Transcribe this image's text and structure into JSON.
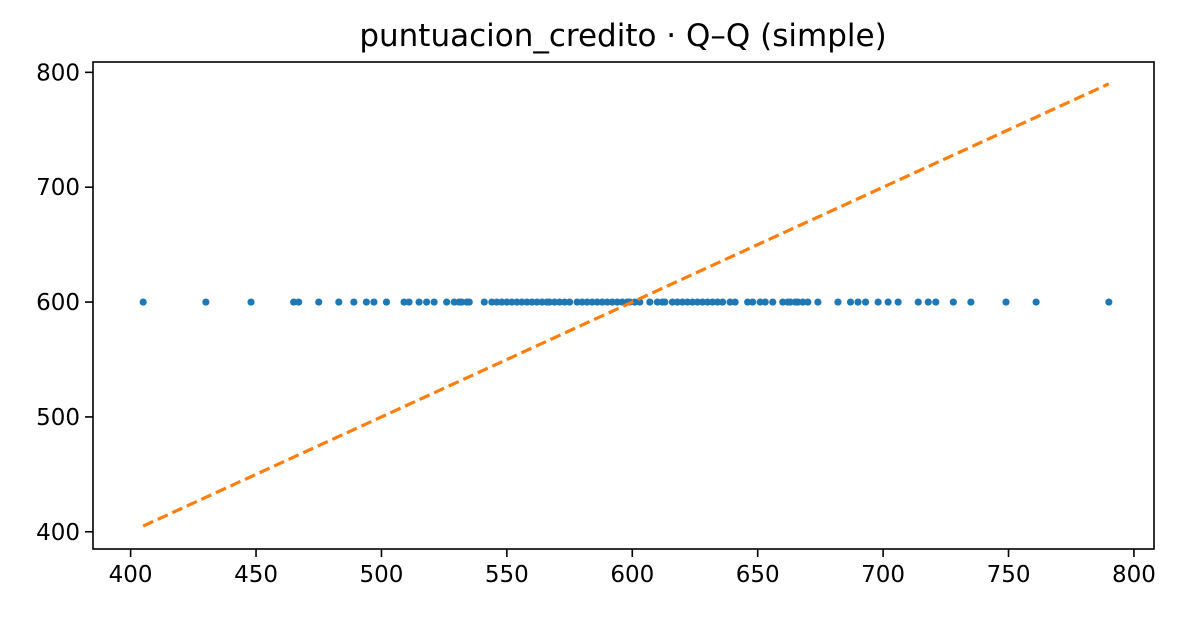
{
  "chart_data": {
    "type": "scatter",
    "title": "puntuacion_credito · Q–Q (simple)",
    "xlabel": "",
    "ylabel": "",
    "xlim": [
      385,
      808
    ],
    "ylim": [
      385,
      809
    ],
    "xticks": [
      400,
      450,
      500,
      550,
      600,
      650,
      700,
      750,
      800
    ],
    "xtick_labels": [
      "400",
      "450",
      "500",
      "550",
      "600",
      "650",
      "700",
      "750",
      "800"
    ],
    "yticks": [
      400,
      500,
      600,
      700,
      800
    ],
    "ytick_labels": [
      "400",
      "500",
      "600",
      "700",
      "800"
    ],
    "grid": false,
    "series": [
      {
        "kind": "points",
        "color": "#1f77b4",
        "x": [
          405,
          430,
          448,
          465,
          467,
          475,
          483,
          489,
          494,
          497,
          502,
          509,
          511,
          515,
          518,
          521,
          526,
          529,
          531,
          532,
          534,
          535,
          541,
          544,
          546,
          548,
          550,
          552,
          554,
          556,
          558,
          560,
          562,
          564,
          566,
          567,
          569,
          571,
          573,
          575,
          578,
          580,
          582,
          584,
          586,
          588,
          590,
          592,
          594,
          596,
          598,
          599,
          601,
          603,
          607,
          610,
          612,
          613,
          616,
          618,
          620,
          622,
          624,
          626,
          628,
          630,
          632,
          634,
          636,
          639,
          641,
          646,
          648,
          651,
          653,
          656,
          660,
          662,
          663,
          665,
          666,
          668,
          670,
          674,
          682,
          687,
          690,
          693,
          698,
          702,
          706,
          714,
          718,
          721,
          728,
          735,
          749,
          761,
          790
        ],
        "y": [
          600,
          600,
          600,
          600,
          600,
          600,
          600,
          600,
          600,
          600,
          600,
          600,
          600,
          600,
          600,
          600,
          600,
          600,
          600,
          600,
          600,
          600,
          600,
          600,
          600,
          600,
          600,
          600,
          600,
          600,
          600,
          600,
          600,
          600,
          600,
          600,
          600,
          600,
          600,
          600,
          600,
          600,
          600,
          600,
          600,
          600,
          600,
          600,
          600,
          600,
          600,
          600,
          600,
          600,
          600,
          600,
          600,
          600,
          600,
          600,
          600,
          600,
          600,
          600,
          600,
          600,
          600,
          600,
          600,
          600,
          600,
          600,
          600,
          600,
          600,
          600,
          600,
          600,
          600,
          600,
          600,
          600,
          600,
          600,
          600,
          600,
          600,
          600,
          600,
          600,
          600,
          600,
          600,
          600,
          600,
          600,
          600,
          600,
          600
        ]
      },
      {
        "kind": "line",
        "style": "dashed",
        "color": "#ff7f0e",
        "x": [
          405,
          790
        ],
        "y": [
          405,
          790
        ]
      }
    ]
  }
}
